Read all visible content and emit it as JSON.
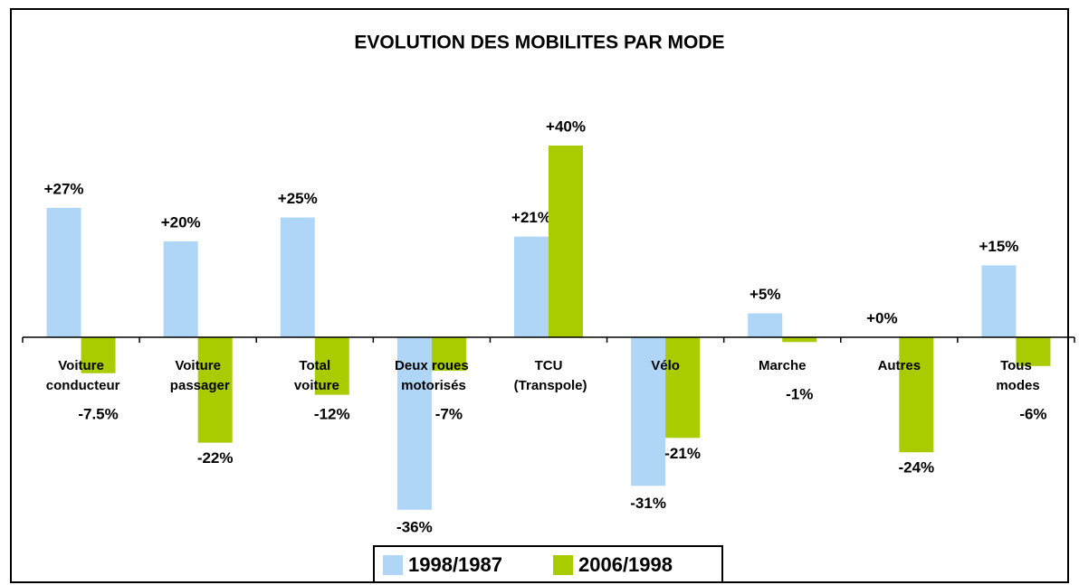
{
  "chart_data": {
    "type": "bar",
    "title": "EVOLUTION DES MOBILITES PAR MODE",
    "categories": [
      "Voiture\nconducteur",
      "Voiture\npassager",
      "Total\nvoiture",
      "Deux roues\nmotorisés",
      "TCU\n(Transpole)",
      "Vélo",
      "Marche",
      "Autres",
      "Tous\nmodes"
    ],
    "series": [
      {
        "name": "1998/1987",
        "color": "#b0d6f7",
        "values": [
          27,
          20,
          25,
          -36,
          21,
          -31,
          5,
          0,
          15
        ],
        "value_labels": [
          "+27%",
          "+20%",
          "+25%",
          "-36%",
          "+21%",
          "-31%",
          "+5%",
          "+0%",
          "+15%"
        ]
      },
      {
        "name": "2006/1998",
        "color": "#a8cc00",
        "values": [
          -7.5,
          -22,
          -12,
          -7,
          40,
          -21,
          -1,
          -24,
          -6
        ],
        "value_labels": [
          "-7.5%",
          "-22%",
          "-12%",
          "-7%",
          "+40%",
          "-21%",
          "-1%",
          "-24%",
          "-6%"
        ]
      }
    ],
    "ylim": [
      -40,
      45
    ],
    "legend": "bottom"
  }
}
